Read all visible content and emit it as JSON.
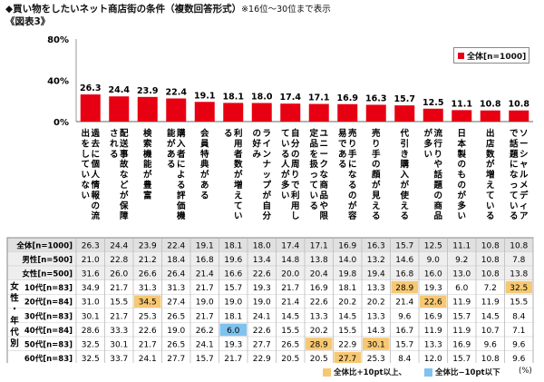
{
  "header": {
    "title": "◆買い物をしたいネット商店街の条件（複数回答形式）",
    "title_note": "※16位～30位まで表示",
    "subtitle": "《図表3》"
  },
  "legend": {
    "label": "全体[n=1000]"
  },
  "footer": {
    "high_label": "全体比+10pt以上、",
    "low_label": "全体比−10pt以下",
    "unit": "(%)",
    "high_color": "#f7c873",
    "low_color": "#7ec3ee"
  },
  "colors": {
    "bar": "#e60012",
    "row_bg": "#eeeeee",
    "header_bg": "#e0e0e0"
  },
  "chart_data": {
    "type": "bar",
    "ylim": [
      0,
      80
    ],
    "yticks": [
      "80%",
      "40%",
      "0%"
    ],
    "categories": [
      "過去に個人情報の流出をしていない",
      "配送事故などが保障される",
      "検索機能が豊富",
      "購入者による評価機能がある",
      "会員特典がある",
      "利用者数が増えている",
      "ラインナップが自分の好み",
      "自分の周りで利用している人が多い",
      "ユニークな商品や限定品を扱っている",
      "売り手になるのが容易である",
      "売り手の顔が見える",
      "代引き購入が使える",
      "流行りや話題の商品が多い",
      "日本製のものが多い",
      "出店数が増えている",
      "ソーシャルメディアで話題になっている"
    ],
    "values": [
      26.3,
      24.4,
      23.9,
      22.4,
      19.1,
      18.1,
      18.0,
      17.4,
      17.1,
      16.9,
      16.3,
      15.7,
      12.5,
      11.1,
      10.8,
      10.8
    ],
    "table": {
      "group_label": "女性・年代別",
      "rows": [
        {
          "label": "全体[n=1000]",
          "values": [
            "26.3",
            "24.4",
            "23.9",
            "22.4",
            "19.1",
            "18.1",
            "18.0",
            "17.4",
            "17.1",
            "16.9",
            "16.3",
            "15.7",
            "12.5",
            "11.1",
            "10.8",
            "10.8"
          ],
          "hl": []
        },
        {
          "label": "男性[n=500]",
          "values": [
            "21.0",
            "22.8",
            "21.2",
            "18.4",
            "16.8",
            "19.6",
            "13.4",
            "14.8",
            "13.8",
            "14.0",
            "13.2",
            "14.6",
            "9.0",
            "9.2",
            "10.8",
            "7.8"
          ],
          "hl": []
        },
        {
          "label": "女性[n=500]",
          "values": [
            "31.6",
            "26.0",
            "26.6",
            "26.4",
            "21.4",
            "16.6",
            "22.6",
            "20.0",
            "20.4",
            "19.8",
            "19.4",
            "16.8",
            "16.0",
            "13.0",
            "10.8",
            "13.8"
          ],
          "hl": []
        },
        {
          "label": "10代[n=83]",
          "values": [
            "34.9",
            "21.7",
            "31.3",
            "31.3",
            "21.7",
            "15.7",
            "19.3",
            "21.7",
            "16.9",
            "18.1",
            "13.3",
            "28.9",
            "19.3",
            "6.0",
            "7.2",
            "32.5"
          ],
          "hl": [
            "",
            "",
            "",
            "",
            "",
            "",
            "",
            "",
            "",
            "",
            "",
            "h",
            "",
            "",
            "",
            "h"
          ]
        },
        {
          "label": "20代[n=84]",
          "values": [
            "31.0",
            "15.5",
            "34.5",
            "27.4",
            "19.0",
            "19.0",
            "19.0",
            "21.4",
            "22.6",
            "20.2",
            "20.2",
            "21.4",
            "22.6",
            "11.9",
            "11.9",
            "15.5"
          ],
          "hl": [
            "",
            "",
            "h",
            "",
            "",
            "",
            "",
            "",
            "",
            "",
            "",
            "",
            "h",
            "",
            "",
            ""
          ]
        },
        {
          "label": "30代[n=83]",
          "values": [
            "30.1",
            "21.7",
            "25.3",
            "26.5",
            "21.7",
            "18.1",
            "24.1",
            "14.5",
            "13.3",
            "14.5",
            "13.3",
            "9.6",
            "16.9",
            "15.7",
            "14.5",
            "8.4"
          ],
          "hl": []
        },
        {
          "label": "40代[n=84]",
          "values": [
            "28.6",
            "33.3",
            "22.6",
            "19.0",
            "26.2",
            "6.0",
            "22.6",
            "15.5",
            "20.2",
            "15.5",
            "14.3",
            "16.7",
            "11.9",
            "11.9",
            "10.7",
            "7.1"
          ],
          "hl": [
            "",
            "",
            "",
            "",
            "",
            "l",
            "",
            "",
            "",
            "",
            "",
            "",
            "",
            "",
            "",
            ""
          ]
        },
        {
          "label": "50代[n=83]",
          "values": [
            "32.5",
            "30.1",
            "21.7",
            "26.5",
            "24.1",
            "19.3",
            "27.7",
            "26.5",
            "28.9",
            "22.9",
            "30.1",
            "15.7",
            "13.3",
            "16.9",
            "9.6",
            "9.6"
          ],
          "hl": [
            "",
            "",
            "",
            "",
            "",
            "",
            "",
            "",
            "h",
            "",
            "h",
            "",
            "",
            "",
            "",
            ""
          ]
        },
        {
          "label": "60代[n=83]",
          "values": [
            "32.5",
            "33.7",
            "24.1",
            "27.7",
            "15.7",
            "21.7",
            "22.9",
            "20.5",
            "20.5",
            "27.7",
            "25.3",
            "8.4",
            "12.0",
            "15.7",
            "10.8",
            "9.6"
          ],
          "hl": [
            "",
            "",
            "",
            "",
            "",
            "",
            "",
            "",
            "",
            "h",
            "",
            "",
            "",
            "",
            "",
            ""
          ]
        }
      ]
    }
  }
}
